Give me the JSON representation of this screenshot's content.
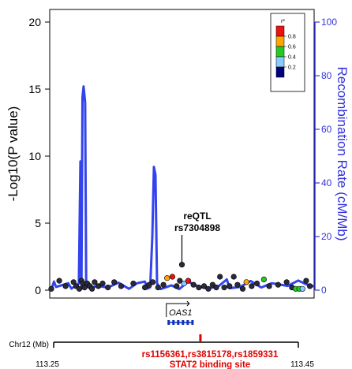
{
  "chart_data": {
    "type": "scatter",
    "title": "",
    "ylabel": "-Log10(P value)",
    "ylabel_right": "Recombination Rate (cM/Mb)",
    "ylim": [
      0,
      20
    ],
    "ylim_right": [
      0,
      100
    ],
    "yticks": [
      "0",
      "5",
      "10",
      "15",
      "20"
    ],
    "yticks_right": [
      "0",
      "20",
      "40",
      "60",
      "80",
      "100"
    ],
    "xlim": [
      113.0,
      113.5
    ],
    "chromosome_label": "Chr12 (Mb)",
    "xticks": [
      "113.25",
      "113.45"
    ],
    "annotation": {
      "label_line1": "reQTL",
      "label_line2": "rs7304898",
      "x": 113.25,
      "y": 1.9
    },
    "gene": {
      "name": "OAS1",
      "start": 113.225,
      "end": 113.27
    },
    "highlight": {
      "snps": "rs1156361,rs3815178,rs1859331",
      "note": "STAT2 binding site",
      "x": 113.285
    },
    "legend": {
      "title": "r²",
      "colors": [
        "#ee1111",
        "#ffa500",
        "#22cc22",
        "#88ccff",
        "#00007f"
      ],
      "labels": [
        "0.8",
        "0.6",
        "0.4",
        "0.2"
      ]
    },
    "recombination_line_color": "#3344ee",
    "recombination_series": [
      {
        "x": 113.0,
        "y": 0
      },
      {
        "x": 113.005,
        "y": 1.3
      },
      {
        "x": 113.008,
        "y": 3.2
      },
      {
        "x": 113.012,
        "y": 1.2
      },
      {
        "x": 113.022,
        "y": 1.8
      },
      {
        "x": 113.035,
        "y": 2.6
      },
      {
        "x": 113.041,
        "y": 0.6
      },
      {
        "x": 113.055,
        "y": 2.4
      },
      {
        "x": 113.058,
        "y": 48
      },
      {
        "x": 113.06,
        "y": 0.5
      },
      {
        "x": 113.062,
        "y": 72
      },
      {
        "x": 113.064,
        "y": 76
      },
      {
        "x": 113.067,
        "y": 70
      },
      {
        "x": 113.069,
        "y": 3
      },
      {
        "x": 113.075,
        "y": 0.8
      },
      {
        "x": 113.09,
        "y": 1.6
      },
      {
        "x": 113.11,
        "y": 1.0
      },
      {
        "x": 113.13,
        "y": 2.8
      },
      {
        "x": 113.15,
        "y": 0.5
      },
      {
        "x": 113.165,
        "y": 2.6
      },
      {
        "x": 113.18,
        "y": 3.2
      },
      {
        "x": 113.185,
        "y": 0.6
      },
      {
        "x": 113.19,
        "y": 1.1
      },
      {
        "x": 113.194,
        "y": 20
      },
      {
        "x": 113.197,
        "y": 46
      },
      {
        "x": 113.2,
        "y": 43
      },
      {
        "x": 113.203,
        "y": 2.5
      },
      {
        "x": 113.21,
        "y": 0.4
      },
      {
        "x": 113.23,
        "y": 1.8
      },
      {
        "x": 113.245,
        "y": 0.4
      },
      {
        "x": 113.262,
        "y": 3.2
      },
      {
        "x": 113.28,
        "y": 1.4
      },
      {
        "x": 113.3,
        "y": 0.6
      },
      {
        "x": 113.32,
        "y": 1.6
      },
      {
        "x": 113.335,
        "y": 4.0
      },
      {
        "x": 113.34,
        "y": 0.7
      },
      {
        "x": 113.36,
        "y": 1.2
      },
      {
        "x": 113.38,
        "y": 3.4
      },
      {
        "x": 113.4,
        "y": 1.0
      },
      {
        "x": 113.42,
        "y": 2.6
      },
      {
        "x": 113.45,
        "y": 1.6
      },
      {
        "x": 113.47,
        "y": 3.6
      },
      {
        "x": 113.485,
        "y": 2.2
      },
      {
        "x": 113.5,
        "y": 1.4
      }
    ],
    "points": [
      {
        "x": 113.003,
        "y": 0.1,
        "r2": 0.1
      },
      {
        "x": 113.018,
        "y": 0.7,
        "r2": 0.1
      },
      {
        "x": 113.03,
        "y": 0.3,
        "r2": 0.1
      },
      {
        "x": 113.045,
        "y": 0.6,
        "r2": 0.1
      },
      {
        "x": 113.05,
        "y": 0.3,
        "r2": 0.1
      },
      {
        "x": 113.056,
        "y": 0.1,
        "r2": 0.1
      },
      {
        "x": 113.06,
        "y": 0.7,
        "r2": 0.1
      },
      {
        "x": 113.063,
        "y": 0.5,
        "r2": 0.1
      },
      {
        "x": 113.066,
        "y": 0.2,
        "r2": 0.1
      },
      {
        "x": 113.071,
        "y": 0.5,
        "r2": 0.1
      },
      {
        "x": 113.076,
        "y": 0.3,
        "r2": 0.1
      },
      {
        "x": 113.08,
        "y": 0.1,
        "r2": 0.1
      },
      {
        "x": 113.085,
        "y": 0.6,
        "r2": 0.1
      },
      {
        "x": 113.092,
        "y": 0.3,
        "r2": 0.1
      },
      {
        "x": 113.1,
        "y": 0.5,
        "r2": 0.1
      },
      {
        "x": 113.11,
        "y": 0.2,
        "r2": 0.1
      },
      {
        "x": 113.122,
        "y": 0.6,
        "r2": 0.1
      },
      {
        "x": 113.135,
        "y": 0.3,
        "r2": 0.1
      },
      {
        "x": 113.158,
        "y": 0.5,
        "r2": 0.1
      },
      {
        "x": 113.18,
        "y": 0.2,
        "r2": 0.1
      },
      {
        "x": 113.188,
        "y": 0.4,
        "r2": 0.1
      },
      {
        "x": 113.195,
        "y": 0.6,
        "r2": 0.1
      },
      {
        "x": 113.205,
        "y": 0.2,
        "r2": 0.1
      },
      {
        "x": 113.215,
        "y": 0.4,
        "r2": 0.1
      },
      {
        "x": 113.222,
        "y": 0.9,
        "r2": 0.7
      },
      {
        "x": 113.232,
        "y": 1.0,
        "r2": 0.9
      },
      {
        "x": 113.24,
        "y": 0.3,
        "r2": 0.1
      },
      {
        "x": 113.246,
        "y": 0.7,
        "r2": 0.1
      },
      {
        "x": 113.25,
        "y": 1.9,
        "r2": 0.1
      },
      {
        "x": 113.254,
        "y": 0.5,
        "r2": 0.2
      },
      {
        "x": 113.262,
        "y": 0.7,
        "r2": 0.9
      },
      {
        "x": 113.272,
        "y": 0.4,
        "r2": 0.1
      },
      {
        "x": 113.282,
        "y": 0.2,
        "r2": 0.1
      },
      {
        "x": 113.292,
        "y": 0.3,
        "r2": 0.1
      },
      {
        "x": 113.3,
        "y": 0.1,
        "r2": 0.1
      },
      {
        "x": 113.308,
        "y": 0.4,
        "r2": 0.1
      },
      {
        "x": 113.315,
        "y": 0.2,
        "r2": 0.1
      },
      {
        "x": 113.322,
        "y": 1.0,
        "r2": 0.1
      },
      {
        "x": 113.33,
        "y": 0.2,
        "r2": 0.1
      },
      {
        "x": 113.34,
        "y": 0.3,
        "r2": 0.1
      },
      {
        "x": 113.348,
        "y": 1.0,
        "r2": 0.1
      },
      {
        "x": 113.355,
        "y": 0.4,
        "r2": 0.1
      },
      {
        "x": 113.365,
        "y": 0.1,
        "r2": 0.1
      },
      {
        "x": 113.372,
        "y": 0.6,
        "r2": 0.7
      },
      {
        "x": 113.382,
        "y": 0.3,
        "r2": 0.1
      },
      {
        "x": 113.392,
        "y": 0.5,
        "r2": 0.1
      },
      {
        "x": 113.405,
        "y": 0.8,
        "r2": 0.5
      },
      {
        "x": 113.415,
        "y": 0.3,
        "r2": 0.1
      },
      {
        "x": 113.432,
        "y": 0.4,
        "r2": 0.1
      },
      {
        "x": 113.448,
        "y": 0.6,
        "r2": 0.1
      },
      {
        "x": 113.458,
        "y": 0.2,
        "r2": 0.1
      },
      {
        "x": 113.465,
        "y": 0.1,
        "r2": 0.5
      },
      {
        "x": 113.472,
        "y": 0.1,
        "r2": 0.5
      },
      {
        "x": 113.478,
        "y": 0.1,
        "r2": 0.3
      },
      {
        "x": 113.485,
        "y": 0.7,
        "r2": 0.1
      },
      {
        "x": 113.492,
        "y": 0.3,
        "r2": 0.1
      }
    ]
  }
}
